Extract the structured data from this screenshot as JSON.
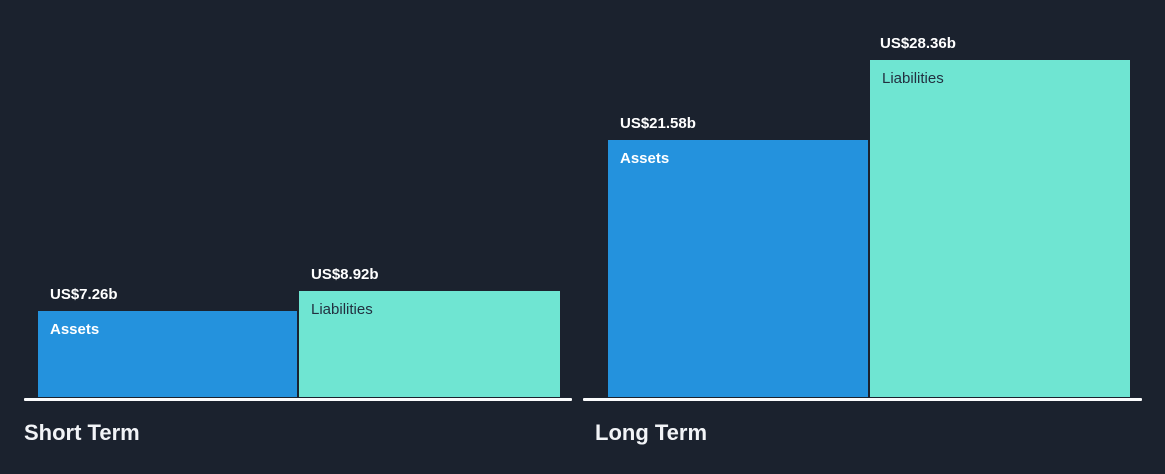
{
  "colors": {
    "background": "#1b222e",
    "assets": "#2492dd",
    "liabilities": "#6fe5d2",
    "axis_line": "#fbfcfd",
    "value_label_text": "#ffffff",
    "assets_label_text": "#ffffff",
    "liabilities_label_text": "#223040",
    "group_title_text": "#f2f4f7"
  },
  "chart_data": {
    "type": "bar",
    "title": "",
    "categories": [
      "Short Term",
      "Long Term"
    ],
    "series": [
      {
        "name": "Assets",
        "values": [
          7.26,
          21.58
        ],
        "value_labels": [
          "US$7.26b",
          "US$21.58b"
        ],
        "color": "#2492dd"
      },
      {
        "name": "Liabilities",
        "values": [
          8.92,
          28.36
        ],
        "value_labels": [
          "US$8.92b",
          "US$28.36b"
        ],
        "color": "#6fe5d2"
      }
    ],
    "unit": "US$ billions",
    "ylim": [
      0,
      29
    ],
    "grid": false,
    "legend_position": "labels-inside-bars",
    "bar_label_position": "above-bar"
  }
}
